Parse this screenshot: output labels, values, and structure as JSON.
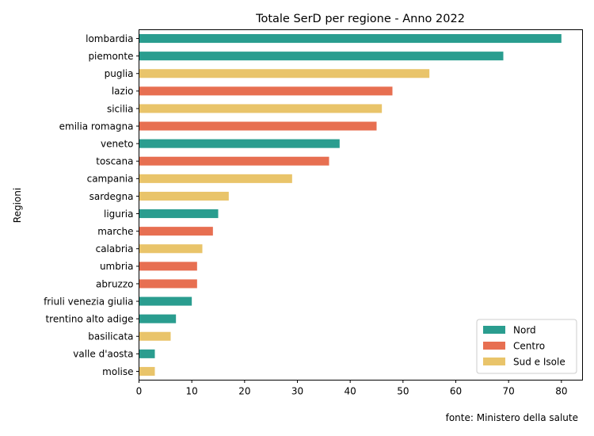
{
  "chart_data": {
    "type": "bar",
    "orientation": "horizontal",
    "title": "Totale SerD per regione - Anno 2022",
    "xlabel": "",
    "ylabel": "Regioni",
    "xlim": [
      0,
      84
    ],
    "xticks": [
      0,
      10,
      20,
      30,
      40,
      50,
      60,
      70,
      80
    ],
    "grid": false,
    "legend_position": "bottom-right",
    "colors": {
      "Nord": "#2a9d8f",
      "Centro": "#e76f51",
      "Sud e Isole": "#e9c46a"
    },
    "legend": [
      "Nord",
      "Centro",
      "Sud e Isole"
    ],
    "categories": [
      "lombardia",
      "piemonte",
      "puglia",
      "lazio",
      "sicilia",
      "emilia romagna",
      "veneto",
      "toscana",
      "campania",
      "sardegna",
      "liguria",
      "marche",
      "calabria",
      "umbria",
      "abruzzo",
      "friuli venezia giulia",
      "trentino alto adige",
      "basilicata",
      "valle d'aosta",
      "molise"
    ],
    "values": [
      80,
      69,
      55,
      48,
      46,
      45,
      38,
      36,
      29,
      17,
      15,
      14,
      12,
      11,
      11,
      10,
      7,
      6,
      3,
      3
    ],
    "groups": [
      "Nord",
      "Nord",
      "Sud e Isole",
      "Centro",
      "Sud e Isole",
      "Centro",
      "Nord",
      "Centro",
      "Sud e Isole",
      "Sud e Isole",
      "Nord",
      "Centro",
      "Sud e Isole",
      "Centro",
      "Centro",
      "Nord",
      "Nord",
      "Sud e Isole",
      "Nord",
      "Sud e Isole"
    ],
    "annotation": "fonte: Ministero della salute"
  }
}
